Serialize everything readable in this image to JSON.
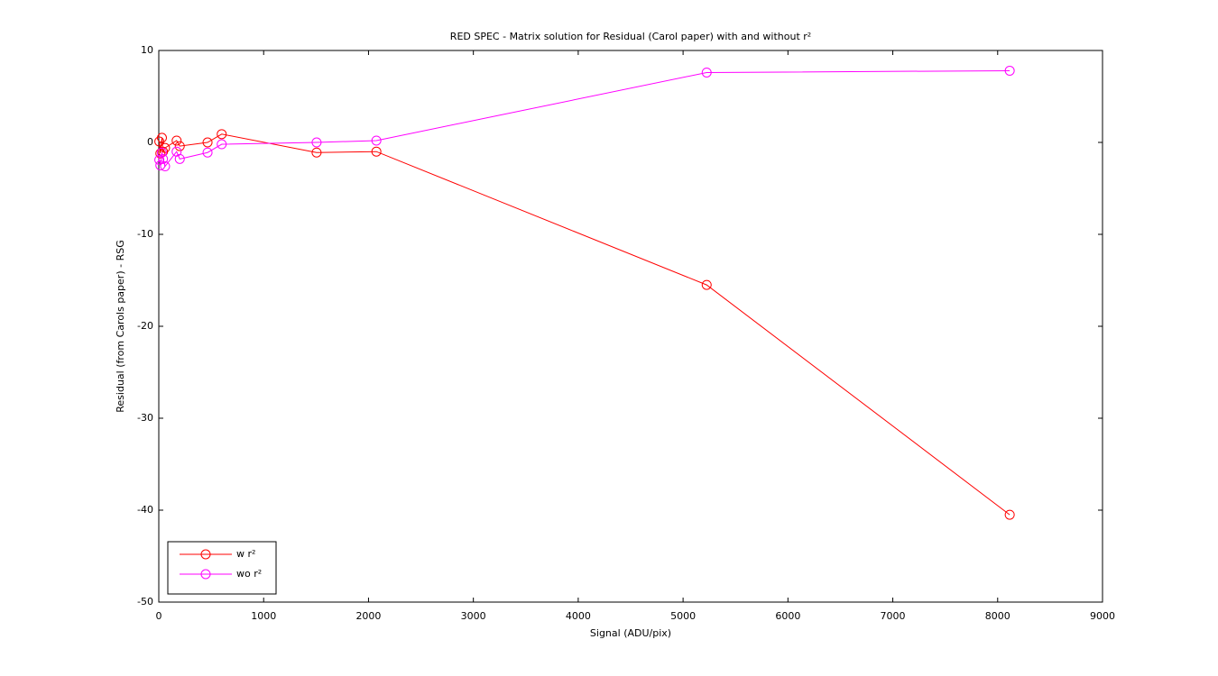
{
  "chart_data": {
    "type": "line",
    "title": "RED SPEC - Matrix solution for Residual (Carol paper) with and without r²",
    "x_label": "Signal (ADU/pix)",
    "y_label": "Residual (from Carols paper) - RSG",
    "x": [
      5,
      15,
      30,
      40,
      60,
      170,
      200,
      465,
      600,
      1505,
      2075,
      5225,
      8115
    ],
    "series": [
      {
        "name": "w r²",
        "color": "#ff0000",
        "values": [
          0.1,
          -1.2,
          0.5,
          -1.0,
          -0.6,
          0.2,
          -0.4,
          0,
          0.9,
          -1.1,
          -1.0,
          -15.5,
          -40.5
        ]
      },
      {
        "name": "wo r²",
        "color": "#ff00ff",
        "values": [
          -1.9,
          -2.5,
          -1.1,
          -1.8,
          -2.6,
          -1.0,
          -1.8,
          -1.1,
          -0.2,
          0,
          0.2,
          7.6,
          7.8
        ]
      }
    ],
    "xlim": [
      0,
      9000
    ],
    "xticks": [
      0,
      1000,
      2000,
      3000,
      4000,
      5000,
      6000,
      7000,
      8000,
      9000
    ],
    "ylim": [
      -50,
      10
    ],
    "yticks": [
      -50,
      -40,
      -30,
      -20,
      -10,
      0,
      10
    ],
    "grid": false,
    "legend": "lower-left"
  }
}
